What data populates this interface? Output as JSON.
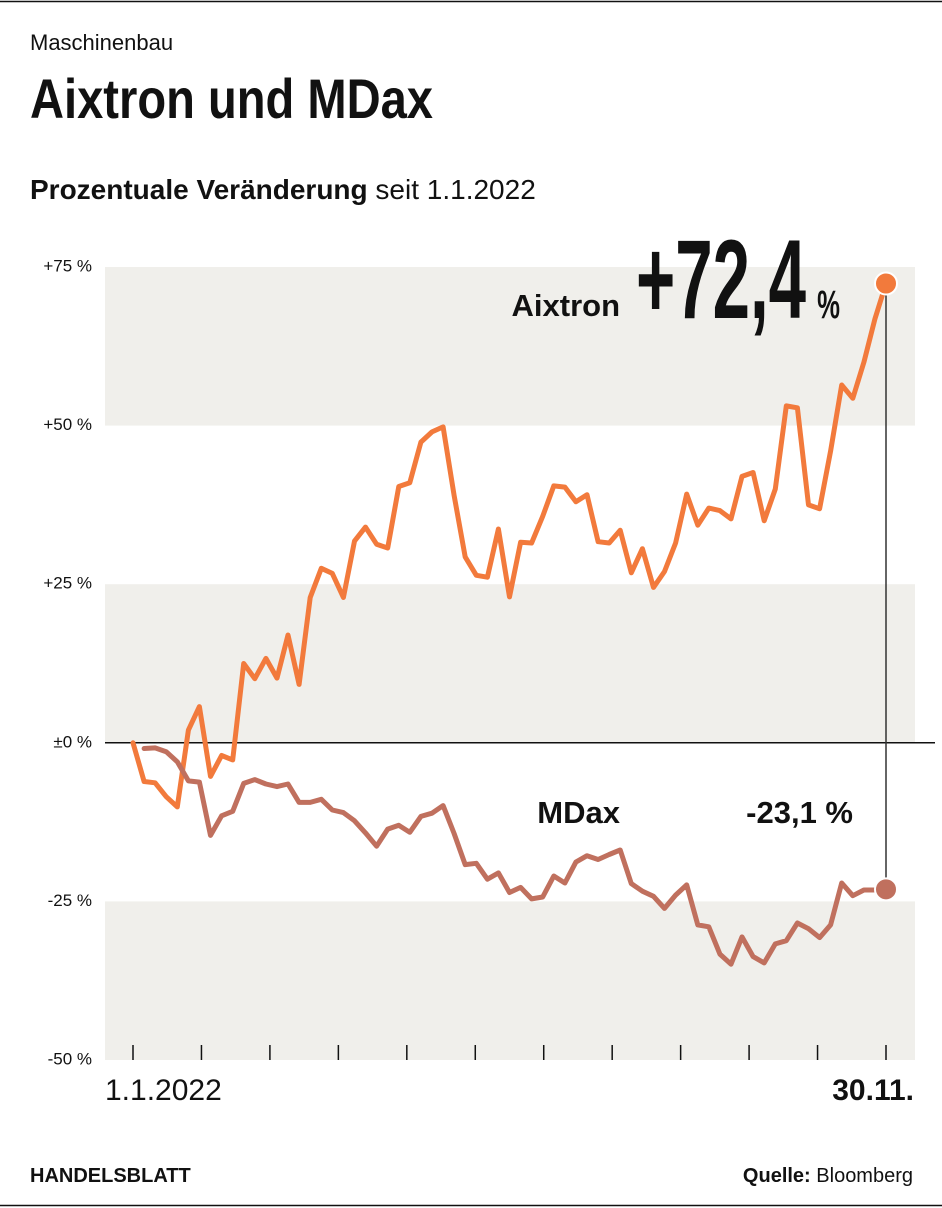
{
  "kicker": "Maschinenbau",
  "footer": {
    "brand": "HANDELSBLATT",
    "source_label": "Quelle:",
    "source": "Bloomberg"
  },
  "chart_data": {
    "type": "line",
    "title": "Aixtron und MDax",
    "subtitle": {
      "emphasis": "Prozentuale Veränderung",
      "rest": "seit 1.1.2022"
    },
    "categories": [
      "1.1.2022",
      null,
      null,
      null,
      null,
      null,
      null,
      null,
      null,
      null,
      null,
      null,
      null,
      null,
      null,
      null,
      null,
      null,
      null,
      null,
      null,
      null,
      null,
      null,
      null,
      null,
      null,
      null,
      null,
      null,
      null,
      null,
      null,
      null,
      null,
      null,
      null,
      null,
      null,
      null,
      null,
      null,
      null,
      null,
      null,
      null,
      null,
      null,
      null,
      null,
      null,
      null,
      null,
      null,
      null,
      null,
      null,
      null,
      null,
      null,
      null,
      null,
      null,
      null,
      null,
      null,
      null,
      null,
      "30.11."
    ],
    "ylim": [
      -50,
      75
    ],
    "yticks": [
      {
        "value": 75,
        "label": "+75 %"
      },
      {
        "value": 50,
        "label": "+50 %"
      },
      {
        "value": 25,
        "label": "+25 %"
      },
      {
        "value": 0,
        "label": "±0 %"
      },
      {
        "value": -25,
        "label": "-25 %"
      },
      {
        "value": -50,
        "label": "-50 %"
      }
    ],
    "banded_background": true,
    "series": [
      {
        "name": "Aixtron",
        "color": "#f27a3c",
        "values": [
          0,
          -6.1,
          -6.3,
          -8.5,
          -10.1,
          2,
          5.7,
          -5.3,
          -2,
          -2.7,
          12.5,
          10.1,
          13.3,
          10.2,
          17.0,
          9.2,
          22.9,
          27.5,
          26.7,
          22.9,
          31.8,
          34.0,
          31.3,
          30.7,
          40.4,
          41.0,
          47.4,
          49.0,
          49.8,
          39,
          29.3,
          26.4,
          26.1,
          33.7,
          23.0,
          31.6,
          31.5,
          35.7,
          40.5,
          40.3,
          38.0,
          39.1,
          31.7,
          31.5,
          33.5,
          26.8,
          30.6,
          24.5,
          27.0,
          31.5,
          39.2,
          34.3,
          37,
          36.6,
          35.3,
          42,
          42.6,
          35.0,
          40.0,
          53.1,
          52.8,
          37.5,
          36.9,
          46,
          56.4,
          54.3,
          60,
          66.8,
          72.4
        ],
        "value_labels": [
          null,
          null,
          null,
          null,
          null,
          null,
          null,
          null,
          null,
          null,
          null,
          null,
          null,
          null,
          null,
          null,
          null,
          null,
          null,
          null,
          null,
          null,
          null,
          null,
          null,
          null,
          null,
          null,
          null,
          null,
          null,
          null,
          null,
          null,
          null,
          null,
          null,
          null,
          null,
          null,
          null,
          null,
          null,
          null,
          null,
          null,
          null,
          null,
          null,
          null,
          null,
          null,
          null,
          null,
          null,
          null,
          null,
          null,
          null,
          null,
          null,
          null,
          null,
          null,
          null,
          null,
          null,
          null,
          "+72,4 %"
        ]
      },
      {
        "name": "MDax",
        "color": "#c0705e",
        "values": [
          null,
          -0.9,
          -0.8,
          -1.4,
          -3.0,
          -6.0,
          -6.2,
          -14.6,
          -11.5,
          -10.8,
          -6.4,
          -5.8,
          -6.5,
          -6.9,
          -6.5,
          -9.4,
          -9.4,
          -8.9,
          -10.6,
          -11.0,
          -12.3,
          -14.2,
          -16.3,
          -13.6,
          -13.0,
          -14.1,
          -11.6,
          -11.1,
          -9.9,
          -14.3,
          -19.2,
          -19.0,
          -21.5,
          -20.5,
          -23.6,
          -22.8,
          -24.6,
          -24.3,
          -21.0,
          -22.1,
          -18.8,
          -17.8,
          -18.4,
          -17.6,
          -16.9,
          -22.2,
          -23.4,
          -24.2,
          -26.1,
          -24.0,
          -22.4,
          -28.7,
          -29.0,
          -33.3,
          -34.9,
          -30.6,
          -33.7,
          -34.7,
          -31.7,
          -31.2,
          -28.4,
          -29.3,
          -30.7,
          -28.7,
          -22.1,
          -24.1,
          -23.2,
          -23.2,
          -23.1
        ],
        "value_labels": [
          null,
          null,
          null,
          null,
          null,
          null,
          null,
          null,
          null,
          null,
          null,
          null,
          null,
          null,
          null,
          null,
          null,
          null,
          null,
          null,
          null,
          null,
          null,
          null,
          null,
          null,
          null,
          null,
          null,
          null,
          null,
          null,
          null,
          null,
          null,
          null,
          null,
          null,
          null,
          null,
          null,
          null,
          null,
          null,
          null,
          null,
          null,
          null,
          null,
          null,
          null,
          null,
          null,
          null,
          null,
          null,
          null,
          null,
          null,
          null,
          null,
          null,
          null,
          null,
          null,
          null,
          null,
          null,
          "-23,1 %"
        ]
      }
    ]
  }
}
